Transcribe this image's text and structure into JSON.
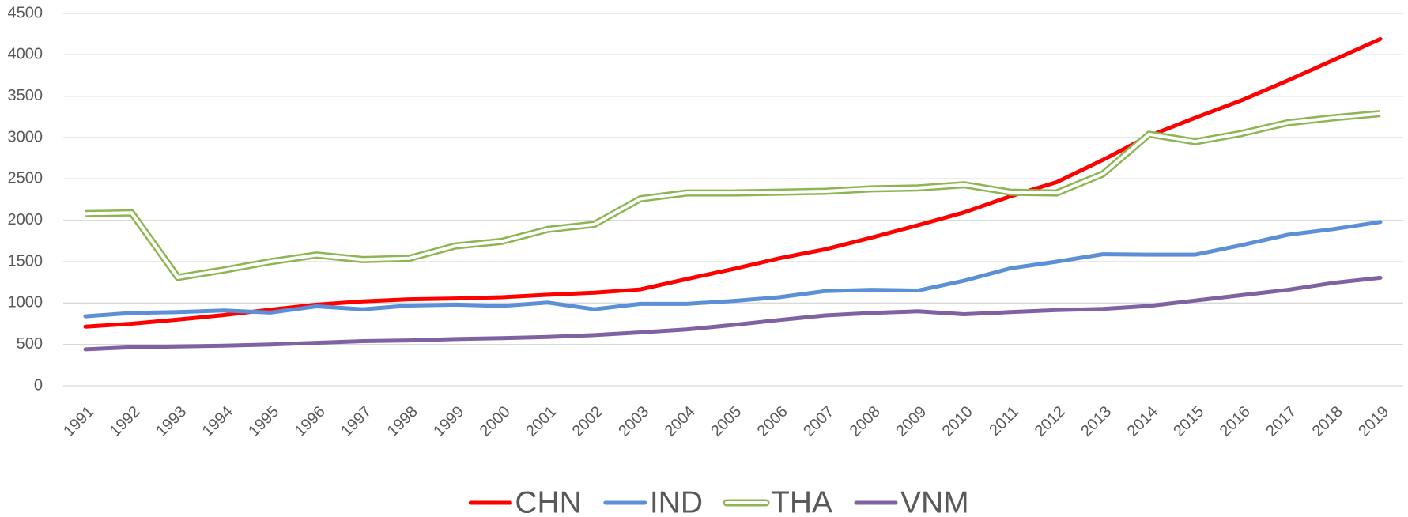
{
  "chart_data": {
    "type": "line",
    "categories": [
      "1991",
      "1992",
      "1993",
      "1994",
      "1995",
      "1996",
      "1997",
      "1998",
      "1999",
      "2000",
      "2001",
      "2002",
      "2003",
      "2004",
      "2005",
      "2006",
      "2007",
      "2008",
      "2009",
      "2010",
      "2011",
      "2012",
      "2013",
      "2014",
      "2015",
      "2016",
      "2017",
      "2018",
      "2019"
    ],
    "series": [
      {
        "name": "CHN",
        "color": "#ff0000",
        "values": [
          715,
          750,
          800,
          855,
          920,
          980,
          1020,
          1045,
          1055,
          1070,
          1100,
          1125,
          1165,
          1290,
          1410,
          1540,
          1650,
          1790,
          1940,
          2095,
          2290,
          2460,
          2730,
          3020,
          3240,
          3450,
          3690,
          3940,
          4190
        ]
      },
      {
        "name": "IND",
        "color": "#5b8fd6",
        "values": [
          840,
          880,
          890,
          910,
          885,
          960,
          925,
          970,
          980,
          965,
          1005,
          925,
          990,
          990,
          1025,
          1070,
          1145,
          1160,
          1150,
          1270,
          1420,
          1500,
          1590,
          1585,
          1585,
          1700,
          1825,
          1895,
          1980
        ]
      },
      {
        "name": "THA",
        "color": "#8db653",
        "outline": true,
        "values": [
          2080,
          2090,
          1310,
          1400,
          1500,
          1580,
          1525,
          1540,
          1690,
          1745,
          1890,
          1950,
          2260,
          2330,
          2330,
          2340,
          2350,
          2380,
          2390,
          2430,
          2340,
          2330,
          2560,
          3040,
          2950,
          3050,
          3180,
          3240,
          3290
        ]
      },
      {
        "name": "VNM",
        "color": "#7f62a2",
        "values": [
          440,
          465,
          475,
          485,
          500,
          520,
          540,
          548,
          565,
          575,
          590,
          612,
          645,
          680,
          735,
          795,
          850,
          880,
          900,
          865,
          890,
          915,
          930,
          965,
          1030,
          1095,
          1160,
          1245,
          1305
        ]
      }
    ],
    "ylim": [
      0,
      4500
    ],
    "yticks": [
      0,
      500,
      1000,
      1500,
      2000,
      2500,
      3000,
      3500,
      4000,
      4500
    ],
    "grid": true,
    "legend": "bottom"
  }
}
